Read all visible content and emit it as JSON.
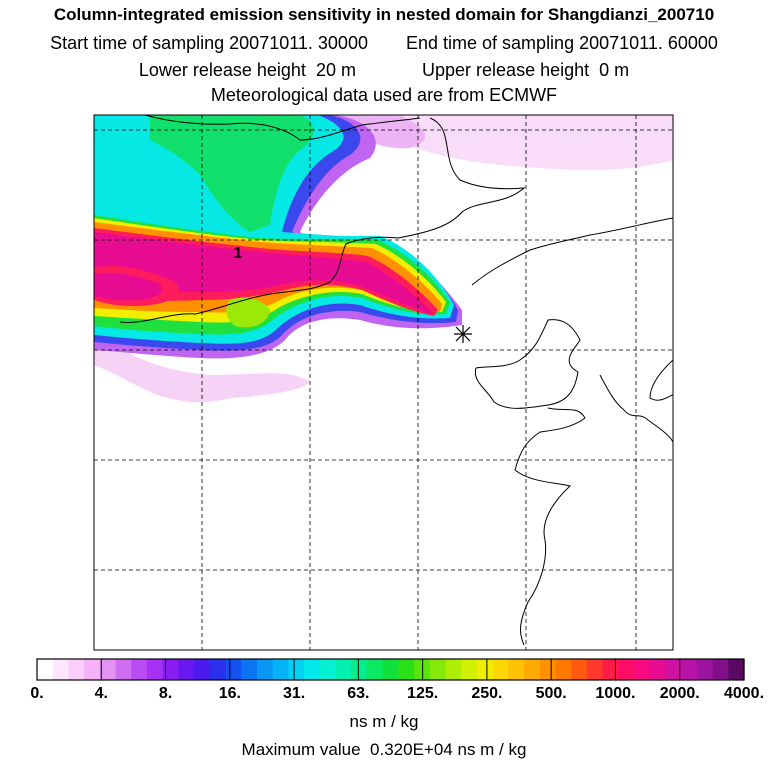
{
  "header": {
    "title": "Column-integrated emission sensitivity in nested domain for Shangdianzi_200710",
    "start_label": "Start time of sampling",
    "start_value": "20071011. 30000",
    "end_label": "End time of sampling",
    "end_value": "20071011. 60000",
    "lower_label": "Lower release height",
    "lower_value": "20 m",
    "upper_label": "Upper release height",
    "upper_value": "0 m",
    "met_line": "Meteorological data used are from ECMWF"
  },
  "map": {
    "contour_label": "1",
    "receptor_marker": "receptor-star"
  },
  "colorbar": {
    "ticks": [
      "0.",
      "4.",
      "8.",
      "16.",
      "31.",
      "63.",
      "125.",
      "250.",
      "500.",
      "1000.",
      "2000.",
      "4000."
    ],
    "colors": [
      "#ffffff",
      "#fde6fd",
      "#facdfa",
      "#f6b2f6",
      "#e394f2",
      "#cd6ef3",
      "#b94bf3",
      "#a532f3",
      "#8a1ef2",
      "#6a18f0",
      "#4a1aee",
      "#2a30ec",
      "#1550f0",
      "#0a74f2",
      "#0896f4",
      "#06b4f5",
      "#04d0f4",
      "#04e8ec",
      "#04f2d2",
      "#04f0b0",
      "#06ec8a",
      "#0ae864",
      "#0fe03c",
      "#2ae018",
      "#58e40c",
      "#86e808",
      "#aeee04",
      "#d2f002",
      "#f0ee00",
      "#fcd800",
      "#ffc200",
      "#ffaa00",
      "#ff9000",
      "#ff7800",
      "#ff5a10",
      "#ff3a2c",
      "#ff1c48",
      "#ff0c66",
      "#f80a80",
      "#e80c92",
      "#d010a0",
      "#b813a6",
      "#9c14a0",
      "#800f88",
      "#5a0a60"
    ],
    "units": "ns m / kg",
    "max_label": "Maximum value",
    "max_value": "0.320E+04",
    "max_units": "ns m / kg"
  }
}
